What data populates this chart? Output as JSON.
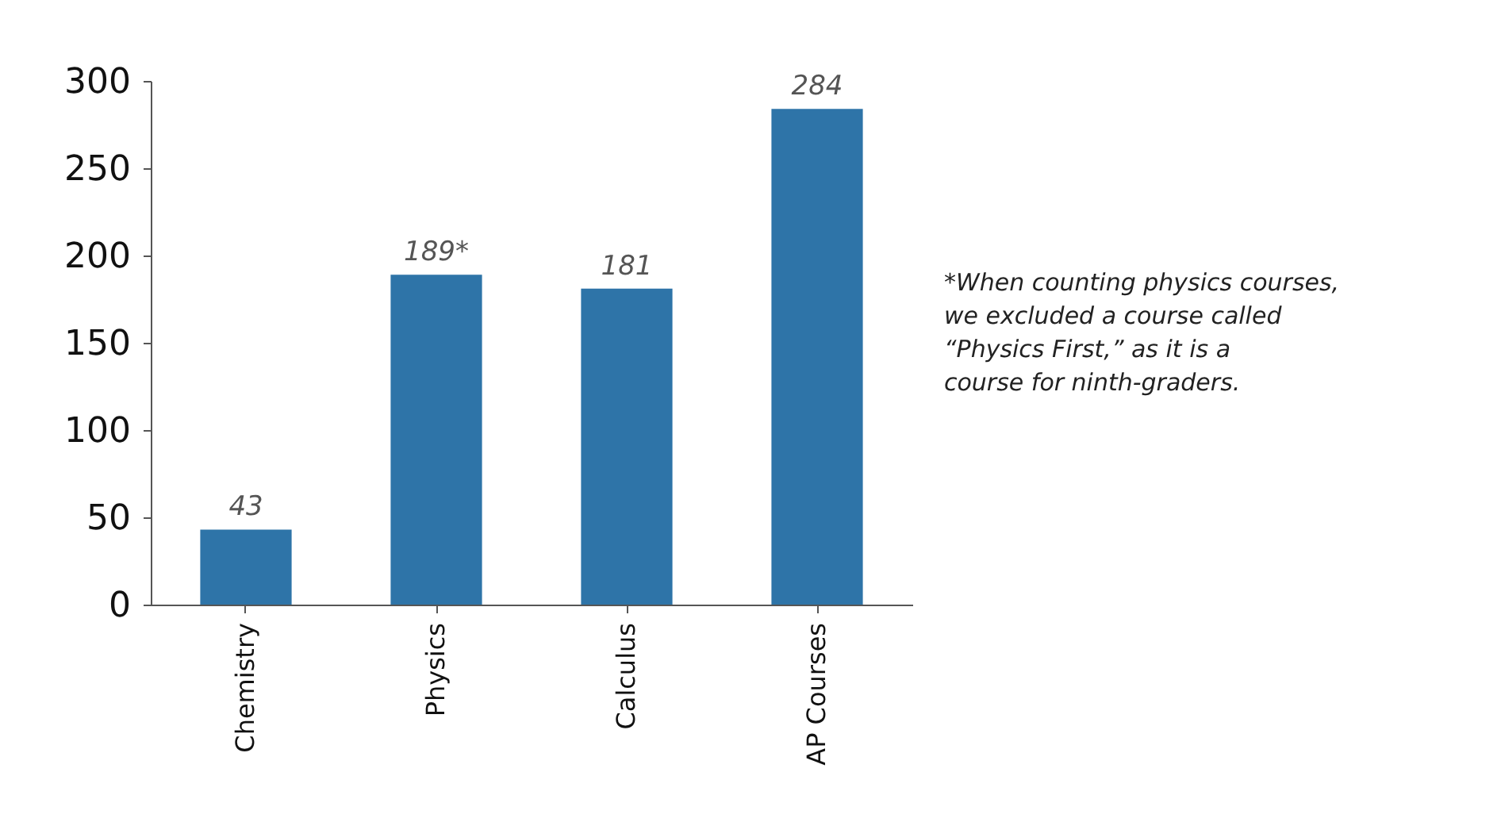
{
  "chart_data": {
    "type": "bar",
    "categories": [
      "Chemistry",
      "Physics",
      "Calculus",
      "AP Courses"
    ],
    "values": [
      43,
      189,
      181,
      284
    ],
    "value_labels": [
      "43",
      "189*",
      "181",
      "284"
    ],
    "color": "#2e74a8",
    "ylim": [
      0,
      300
    ],
    "yticks": [
      0,
      50,
      100,
      150,
      200,
      250,
      300
    ],
    "grid": false,
    "annotations": [
      "*When counting physics courses, we excluded a course called “Physics First,” as it is a course for ninth-graders."
    ]
  }
}
